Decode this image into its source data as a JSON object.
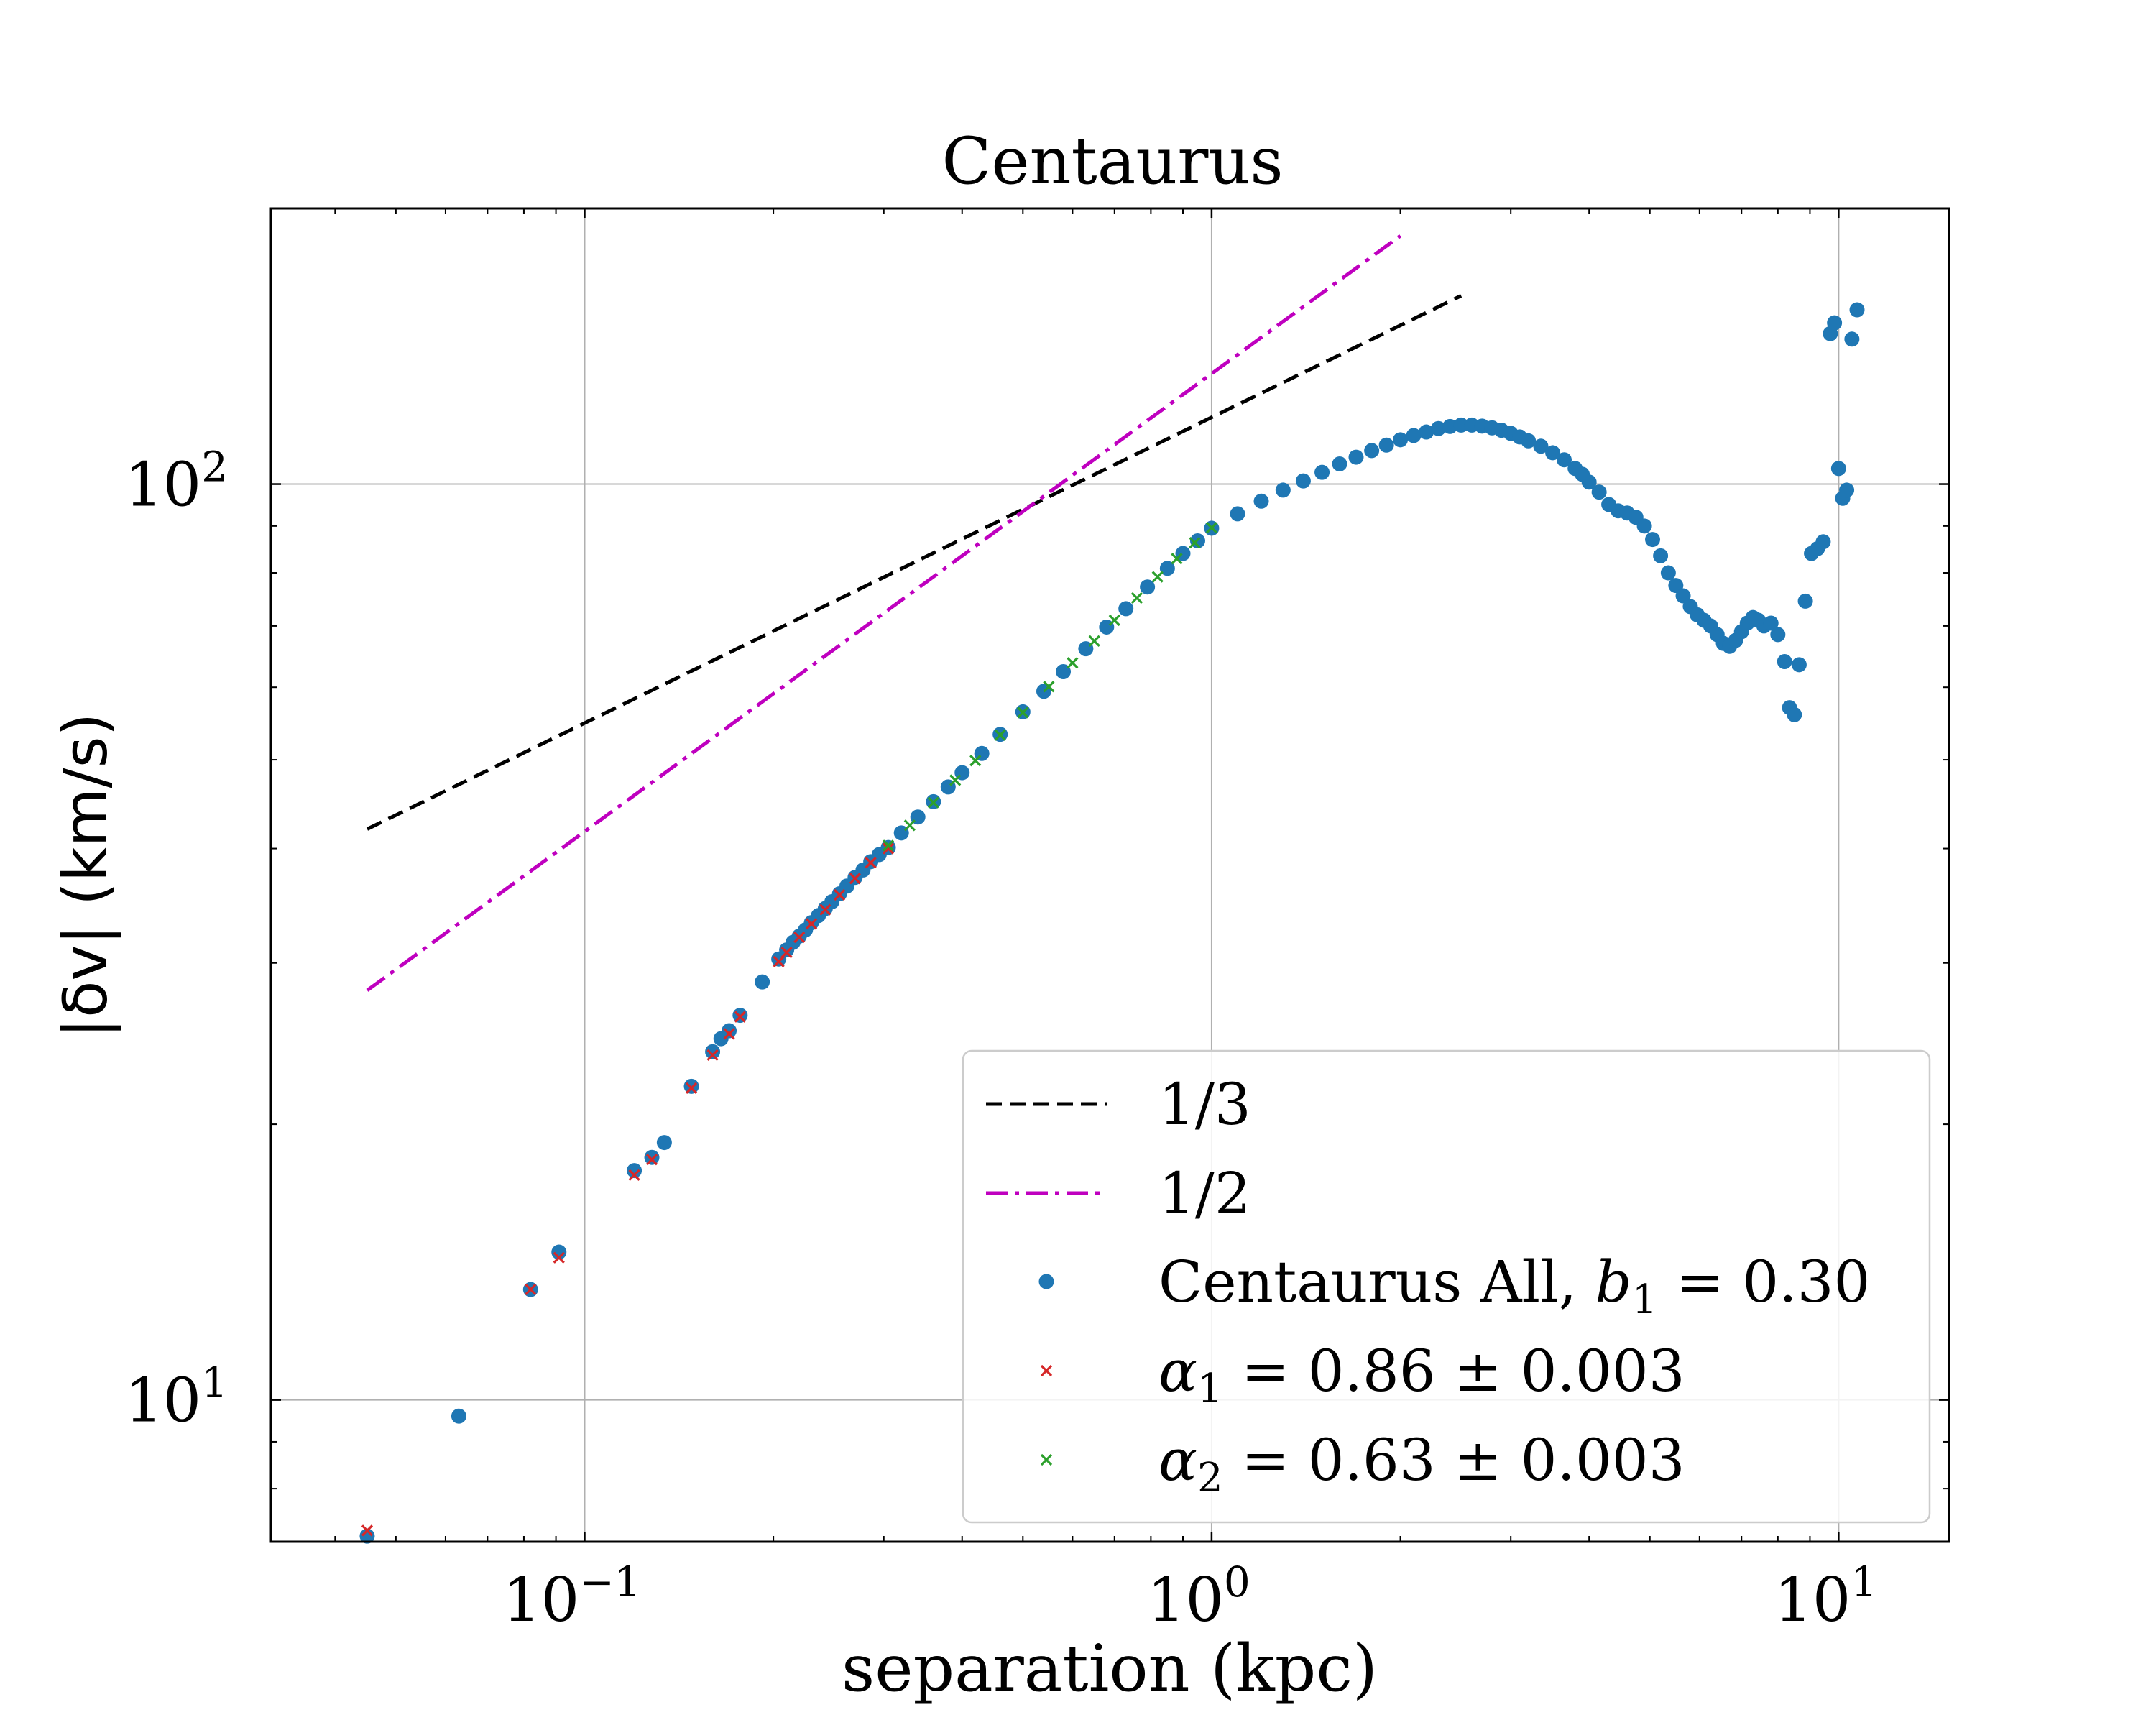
{
  "chart_data": {
    "type": "scatter",
    "title": "Centaurus",
    "xlabel": "separation (kpc)",
    "ylabel": "|δv| (km/s)",
    "x_scale": "log",
    "y_scale": "log",
    "xlim": [
      0.0316,
      15.0
    ],
    "ylim": [
      7.0,
      200.0
    ],
    "grid": true,
    "legend_position": "lower-right",
    "x_ticks": [
      {
        "value": 0.1,
        "base": "10",
        "exp": "−1"
      },
      {
        "value": 1,
        "base": "10",
        "exp": "0"
      },
      {
        "value": 10,
        "base": "10",
        "exp": "1"
      }
    ],
    "y_ticks": [
      {
        "value": 10,
        "base": "10",
        "exp": "1"
      },
      {
        "value": 100,
        "base": "10",
        "exp": "2"
      }
    ],
    "colors": {
      "data": "#1f77b4",
      "fit1": "#d62728",
      "fit2": "#2ca02c",
      "ref13": "#000000",
      "ref12": "#bf00bf",
      "grid": "#b0b0b0"
    },
    "reference_lines": [
      {
        "label": "1/3",
        "style": "dashed",
        "color": "#000000",
        "x": [
          0.045,
          2.5
        ],
        "y": [
          42,
          160.6
        ]
      },
      {
        "label": "1/2",
        "style": "dashdot",
        "color": "#bf00bf",
        "x": [
          0.045,
          2.0
        ],
        "y": [
          28,
          186.7
        ]
      }
    ],
    "legend": {
      "items": [
        {
          "kind": "line-dashed",
          "label": "1/3"
        },
        {
          "kind": "line-dashdot",
          "label": "1/2"
        },
        {
          "kind": "dot",
          "label_prefix": "Centaurus All, ",
          "var": "b",
          "sub": "1",
          "label_suffix": " = 0.30"
        },
        {
          "kind": "x-red",
          "label_prefix": "",
          "var": "α",
          "sub": "1",
          "label_suffix": " = 0.86 ± 0.003"
        },
        {
          "kind": "x-green",
          "label_prefix": "",
          "var": "α",
          "sub": "2",
          "label_suffix": " = 0.63 ± 0.003"
        }
      ]
    },
    "series": [
      {
        "name": "Centaurus All, b1 = 0.30",
        "marker": "dot",
        "points": [
          [
            0.045,
            7.1
          ],
          [
            0.063,
            9.6
          ],
          [
            0.082,
            13.2
          ],
          [
            0.091,
            14.5
          ],
          [
            0.12,
            17.8
          ],
          [
            0.128,
            18.4
          ],
          [
            0.134,
            19.1
          ],
          [
            0.148,
            22.0
          ],
          [
            0.16,
            24.0
          ],
          [
            0.165,
            24.8
          ],
          [
            0.17,
            25.3
          ],
          [
            0.177,
            26.3
          ],
          [
            0.192,
            28.6
          ],
          [
            0.204,
            30.3
          ],
          [
            0.21,
            31.0
          ],
          [
            0.215,
            31.6
          ],
          [
            0.22,
            32.1
          ],
          [
            0.225,
            32.6
          ],
          [
            0.23,
            33.2
          ],
          [
            0.236,
            33.8
          ],
          [
            0.242,
            34.4
          ],
          [
            0.248,
            35.0
          ],
          [
            0.255,
            35.7
          ],
          [
            0.262,
            36.4
          ],
          [
            0.27,
            37.2
          ],
          [
            0.278,
            37.9
          ],
          [
            0.286,
            38.7
          ],
          [
            0.295,
            39.4
          ],
          [
            0.305,
            40.1
          ],
          [
            0.32,
            41.6
          ],
          [
            0.34,
            43.3
          ],
          [
            0.36,
            45.0
          ],
          [
            0.38,
            46.7
          ],
          [
            0.4,
            48.4
          ],
          [
            0.43,
            50.8
          ],
          [
            0.46,
            53.3
          ],
          [
            0.5,
            56.4
          ],
          [
            0.54,
            59.4
          ],
          [
            0.58,
            62.4
          ],
          [
            0.63,
            66.1
          ],
          [
            0.68,
            69.8
          ],
          [
            0.73,
            73.1
          ],
          [
            0.79,
            77.2
          ],
          [
            0.85,
            80.9
          ],
          [
            0.9,
            84.0
          ],
          [
            0.95,
            86.7
          ],
          [
            1.0,
            89.5
          ],
          [
            1.1,
            92.8
          ],
          [
            1.2,
            95.8
          ],
          [
            1.3,
            98.5
          ],
          [
            1.4,
            100.8
          ],
          [
            1.5,
            103.0
          ],
          [
            1.6,
            105.2
          ],
          [
            1.7,
            107.0
          ],
          [
            1.8,
            108.8
          ],
          [
            1.9,
            110.3
          ],
          [
            2.0,
            111.8
          ],
          [
            2.1,
            113.0
          ],
          [
            2.2,
            114.0
          ],
          [
            2.3,
            115.0
          ],
          [
            2.4,
            115.6
          ],
          [
            2.5,
            116.0
          ],
          [
            2.6,
            116.0
          ],
          [
            2.7,
            115.7
          ],
          [
            2.8,
            115.2
          ],
          [
            2.9,
            114.5
          ],
          [
            3.0,
            113.6
          ],
          [
            3.1,
            112.6
          ],
          [
            3.2,
            111.5
          ],
          [
            3.35,
            110.0
          ],
          [
            3.5,
            108.2
          ],
          [
            3.65,
            106.3
          ],
          [
            3.8,
            104.0
          ],
          [
            3.9,
            102.5
          ],
          [
            4.0,
            100.5
          ],
          [
            4.15,
            98.0
          ],
          [
            4.3,
            95.0
          ],
          [
            4.45,
            93.5
          ],
          [
            4.6,
            93.0
          ],
          [
            4.75,
            92.0
          ],
          [
            4.9,
            90.0
          ],
          [
            5.05,
            87.0
          ],
          [
            5.2,
            83.5
          ],
          [
            5.35,
            80.0
          ],
          [
            5.5,
            77.5
          ],
          [
            5.65,
            75.5
          ],
          [
            5.8,
            73.5
          ],
          [
            5.95,
            72.0
          ],
          [
            6.1,
            71.0
          ],
          [
            6.25,
            70.0
          ],
          [
            6.4,
            68.5
          ],
          [
            6.55,
            67.0
          ],
          [
            6.7,
            66.5
          ],
          [
            6.85,
            67.5
          ],
          [
            7.0,
            69.0
          ],
          [
            7.15,
            70.5
          ],
          [
            7.3,
            71.5
          ],
          [
            7.45,
            71.0
          ],
          [
            7.6,
            70.0
          ],
          [
            7.8,
            70.5
          ],
          [
            8.0,
            68.5
          ],
          [
            8.2,
            64.0
          ],
          [
            8.35,
            57.0
          ],
          [
            8.5,
            56.0
          ],
          [
            8.65,
            63.5
          ],
          [
            8.85,
            74.5
          ],
          [
            9.05,
            84.0
          ],
          [
            9.25,
            85.0
          ],
          [
            9.45,
            86.5
          ],
          [
            9.7,
            146.0
          ],
          [
            9.85,
            150.0
          ],
          [
            10.0,
            104.0
          ],
          [
            10.15,
            96.5
          ],
          [
            10.3,
            98.5
          ],
          [
            10.5,
            144.0
          ],
          [
            10.7,
            155.0
          ]
        ]
      },
      {
        "name": "α1 = 0.86 ± 0.003",
        "marker": "x",
        "points": [
          [
            0.045,
            7.2
          ],
          [
            0.082,
            13.2
          ],
          [
            0.091,
            14.3
          ],
          [
            0.12,
            17.6
          ],
          [
            0.128,
            18.3
          ],
          [
            0.148,
            21.9
          ],
          [
            0.16,
            23.8
          ],
          [
            0.17,
            25.1
          ],
          [
            0.177,
            26.2
          ],
          [
            0.204,
            30.1
          ],
          [
            0.21,
            30.8
          ],
          [
            0.22,
            32.0
          ],
          [
            0.23,
            33.1
          ],
          [
            0.242,
            34.3
          ],
          [
            0.255,
            35.6
          ],
          [
            0.27,
            37.1
          ],
          [
            0.286,
            38.6
          ],
          [
            0.305,
            40.0
          ]
        ]
      },
      {
        "name": "α2 = 0.63 ± 0.003",
        "marker": "x",
        "points": [
          [
            0.305,
            40.3
          ],
          [
            0.33,
            42.4
          ],
          [
            0.36,
            44.9
          ],
          [
            0.39,
            47.5
          ],
          [
            0.42,
            49.9
          ],
          [
            0.46,
            53.2
          ],
          [
            0.5,
            56.3
          ],
          [
            0.55,
            60.1
          ],
          [
            0.6,
            63.8
          ],
          [
            0.65,
            67.4
          ],
          [
            0.7,
            71.0
          ],
          [
            0.76,
            75.1
          ],
          [
            0.82,
            79.2
          ],
          [
            0.88,
            82.9
          ],
          [
            0.94,
            86.3
          ],
          [
            1.0,
            89.6
          ]
        ]
      }
    ]
  }
}
